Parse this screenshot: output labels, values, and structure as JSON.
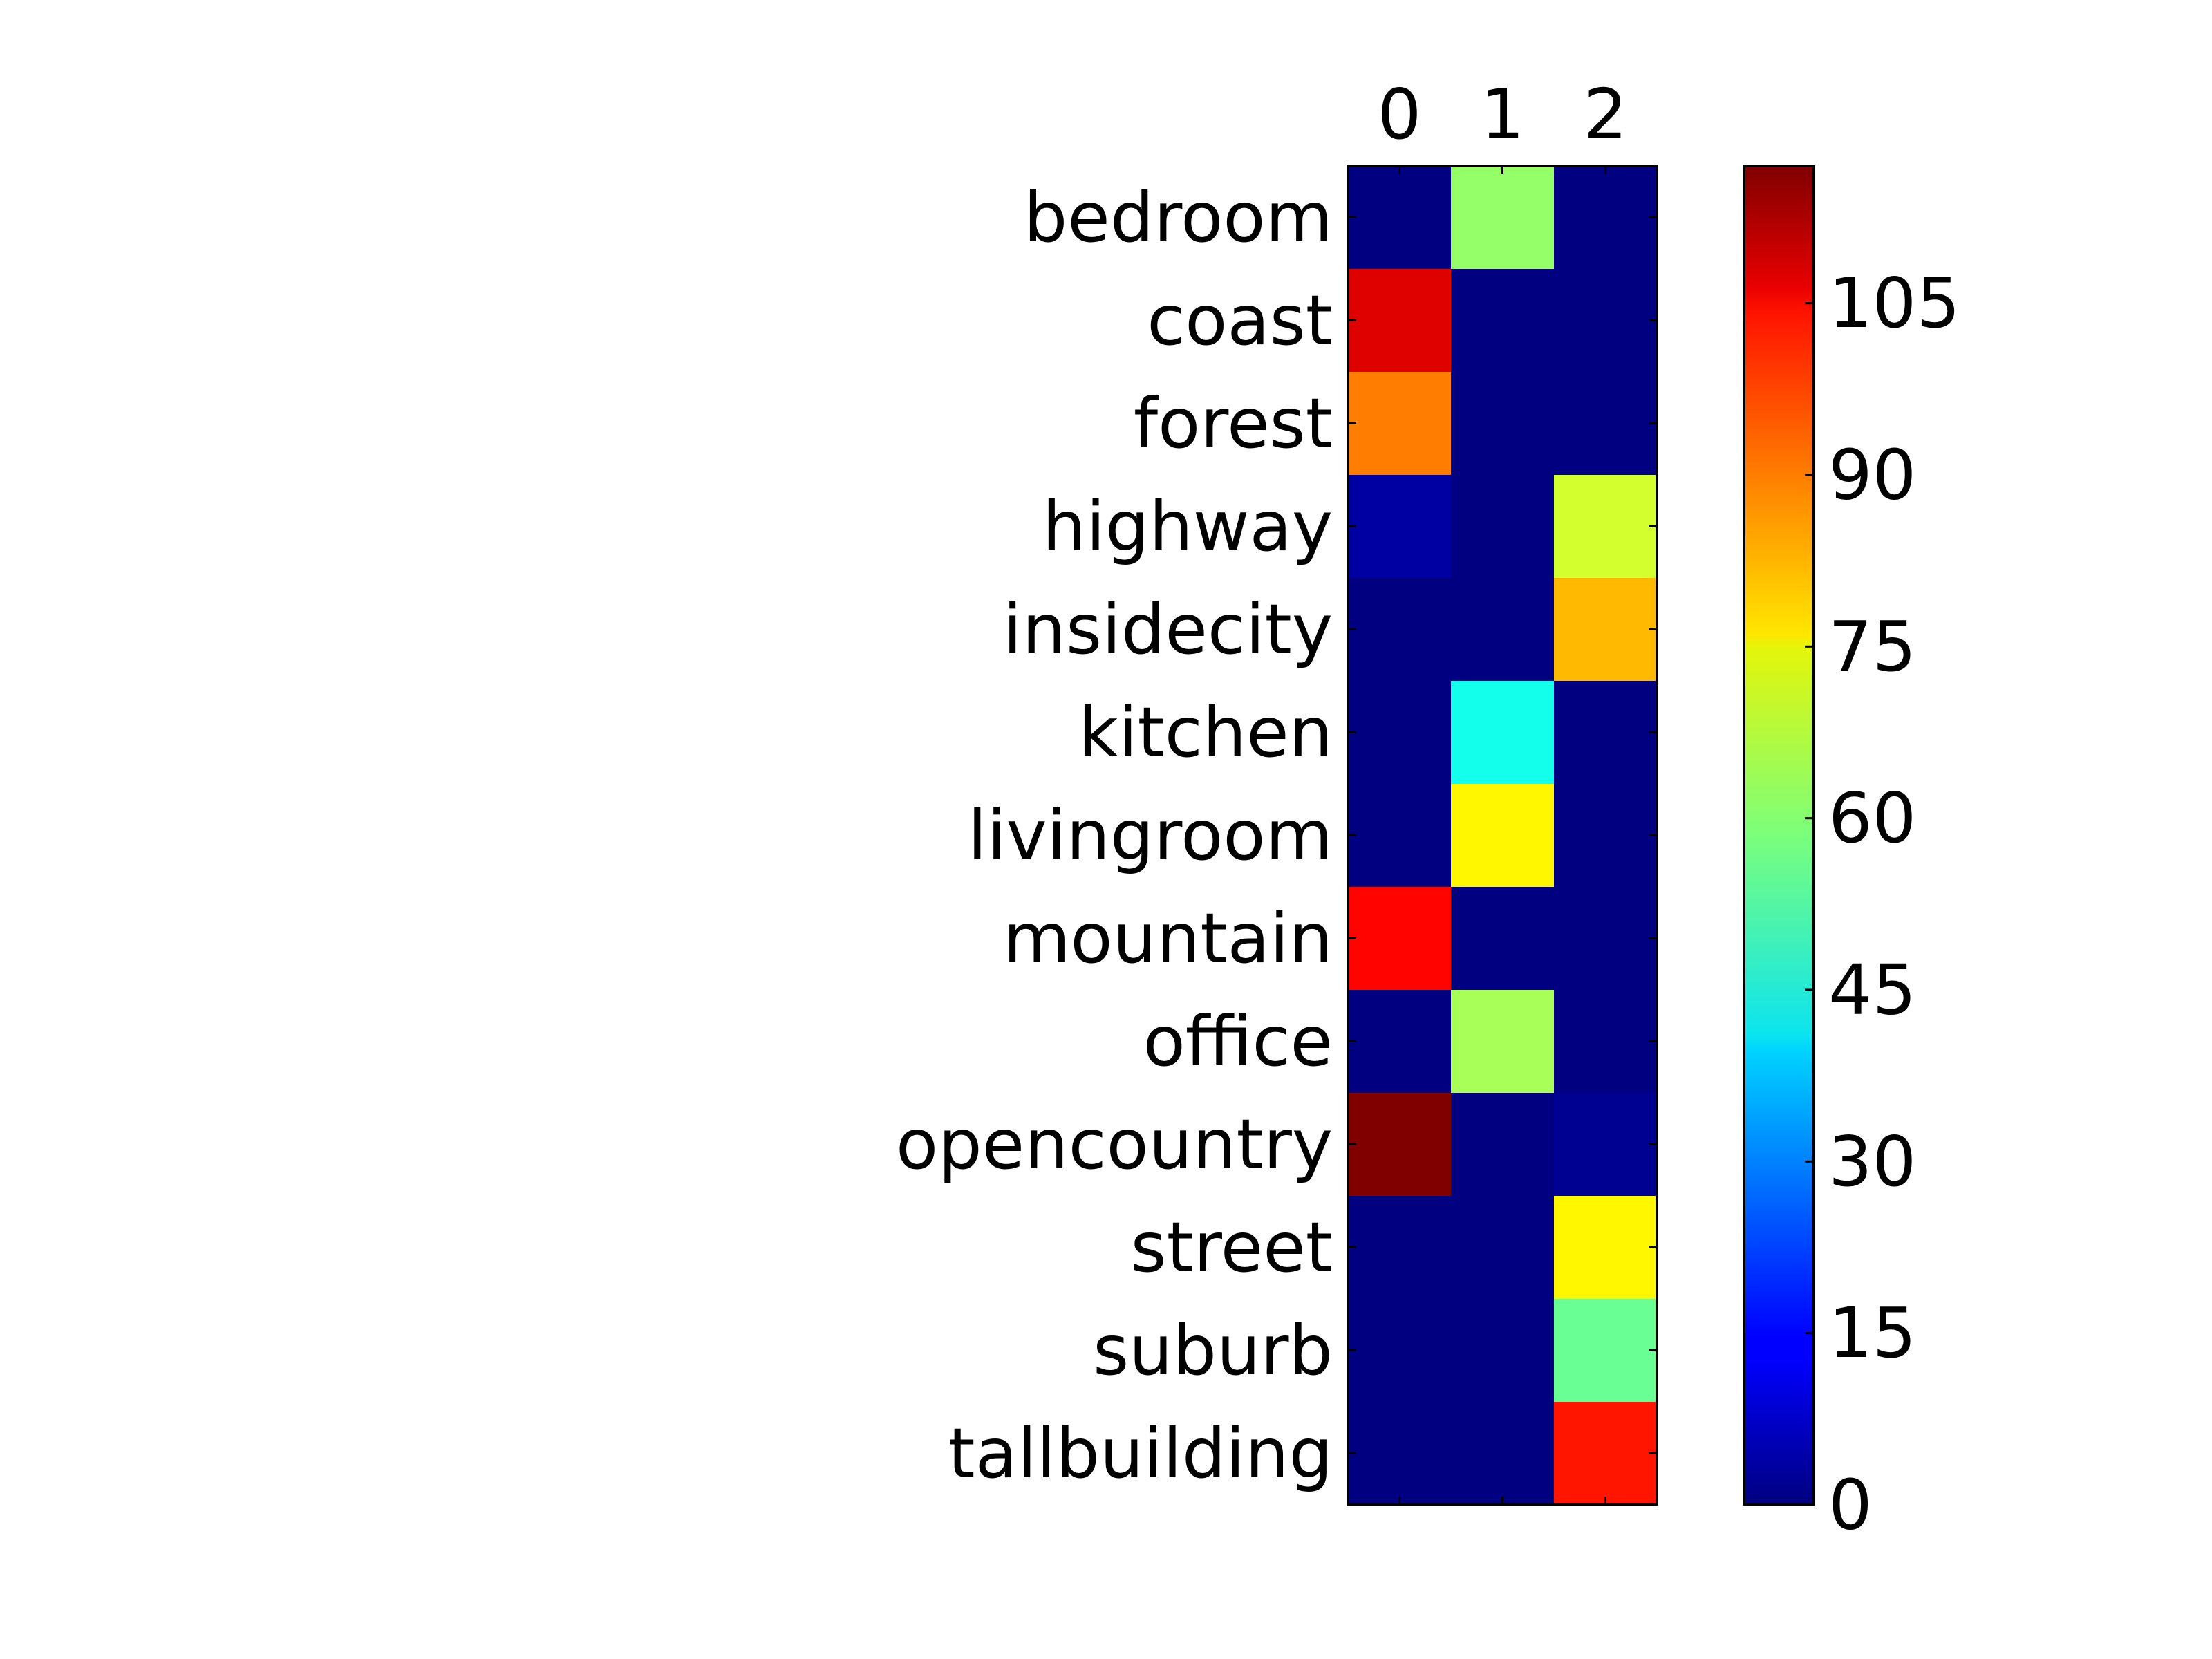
{
  "chart_data": {
    "type": "heatmap",
    "title": "",
    "xlabel": "",
    "ylabel": "",
    "x_tick_position": "top",
    "columns": [
      "0",
      "1",
      "2"
    ],
    "rows": [
      "bedroom",
      "coast",
      "forest",
      "highway",
      "insidecity",
      "kitchen",
      "livingroom",
      "mountain",
      "office",
      "opencountry",
      "street",
      "suburb",
      "tallbuilding"
    ],
    "values": [
      [
        0,
        61,
        0
      ],
      [
        106,
        0,
        0
      ],
      [
        88,
        0,
        0
      ],
      [
        4,
        0,
        68
      ],
      [
        0,
        0,
        81
      ],
      [
        0,
        46,
        0
      ],
      [
        0,
        74,
        0
      ],
      [
        102,
        0,
        0
      ],
      [
        0,
        63,
        0
      ],
      [
        117,
        0,
        2
      ],
      [
        0,
        0,
        74
      ],
      [
        0,
        0,
        56
      ],
      [
        0,
        0,
        100
      ]
    ],
    "colormap": "jet",
    "vmin": 0,
    "vmax": 117,
    "colorbar": {
      "ticks": [
        0,
        15,
        30,
        45,
        60,
        75,
        90,
        105
      ],
      "tick_labels": [
        "0",
        "15",
        "30",
        "45",
        "60",
        "75",
        "90",
        "105"
      ]
    }
  }
}
